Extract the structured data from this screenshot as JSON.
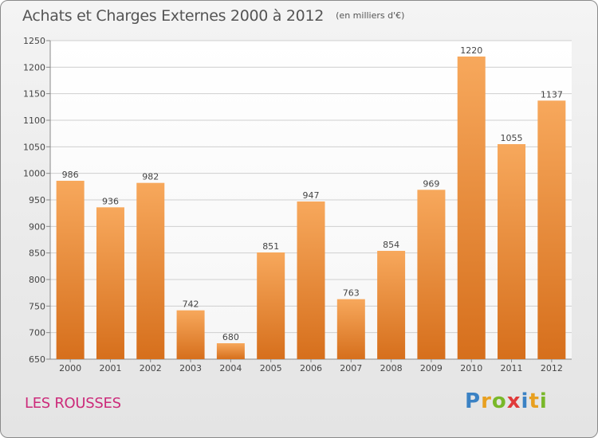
{
  "header": {
    "title": "Achats et Charges Externes 2000 à 2012",
    "unit": "(en milliers d'€)"
  },
  "commune": "LES ROUSSES",
  "brand": {
    "letters": [
      "P",
      "r",
      "o",
      "x",
      "i",
      "t",
      "i"
    ],
    "colors": [
      "#3b82c4",
      "#e8a020",
      "#79b829",
      "#e03a3a",
      "#3b82c4",
      "#e8a020",
      "#79b829"
    ]
  },
  "colors": {
    "bar_top": "#f7a85c",
    "bar_bottom": "#d66f1c",
    "grid": "#cfcfcf",
    "axis_text": "#444444"
  },
  "chart_data": {
    "type": "bar",
    "categories": [
      "2000",
      "2001",
      "2002",
      "2003",
      "2004",
      "2005",
      "2006",
      "2007",
      "2008",
      "2009",
      "2010",
      "2011",
      "2012"
    ],
    "values": [
      986,
      936,
      982,
      742,
      680,
      851,
      947,
      763,
      854,
      969,
      1220,
      1055,
      1137
    ],
    "ylim": [
      650,
      1250
    ],
    "yticks": [
      650,
      700,
      750,
      800,
      850,
      900,
      950,
      1000,
      1050,
      1100,
      1150,
      1200,
      1250
    ],
    "grid": true,
    "data_labels": true
  }
}
